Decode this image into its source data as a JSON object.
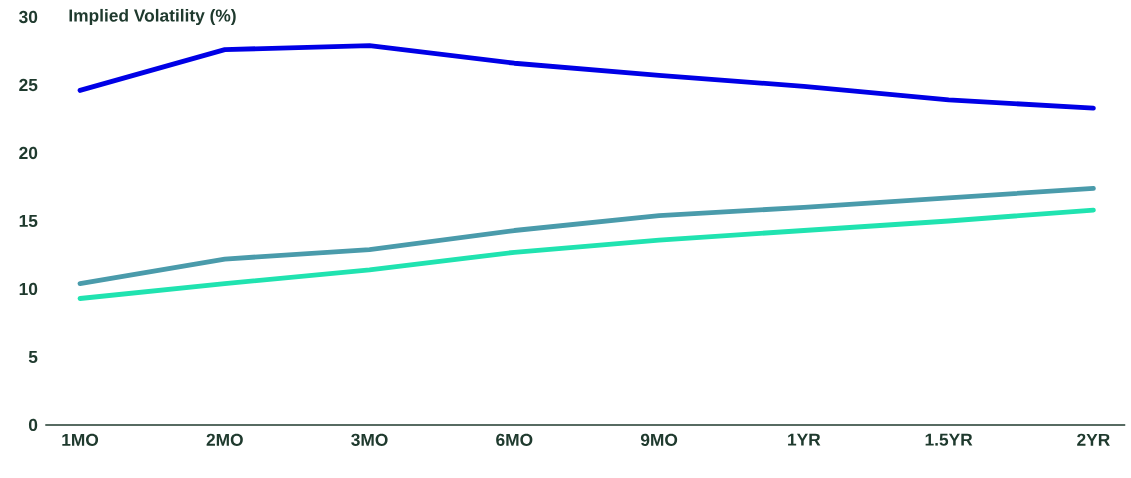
{
  "chart_data": {
    "type": "line",
    "title": "Implied Volatility (%)",
    "categories": [
      "1MO",
      "2MO",
      "3MO",
      "6MO",
      "9MO",
      "1YR",
      "1.5YR",
      "2YR"
    ],
    "series": [
      {
        "color": "#0000e6",
        "values": [
          24.6,
          27.6,
          27.9,
          26.6,
          25.7,
          24.9,
          23.9,
          23.3
        ]
      },
      {
        "color": "#4a9bab",
        "values": [
          10.4,
          12.2,
          12.9,
          14.3,
          15.4,
          16.0,
          16.7,
          17.4
        ]
      },
      {
        "color": "#20e3b0",
        "values": [
          9.3,
          10.4,
          11.4,
          12.7,
          13.6,
          14.3,
          15.0,
          15.8
        ]
      }
    ],
    "ylim": [
      0,
      30
    ],
    "yticks": [
      0,
      5,
      10,
      15,
      20,
      25,
      30
    ]
  }
}
